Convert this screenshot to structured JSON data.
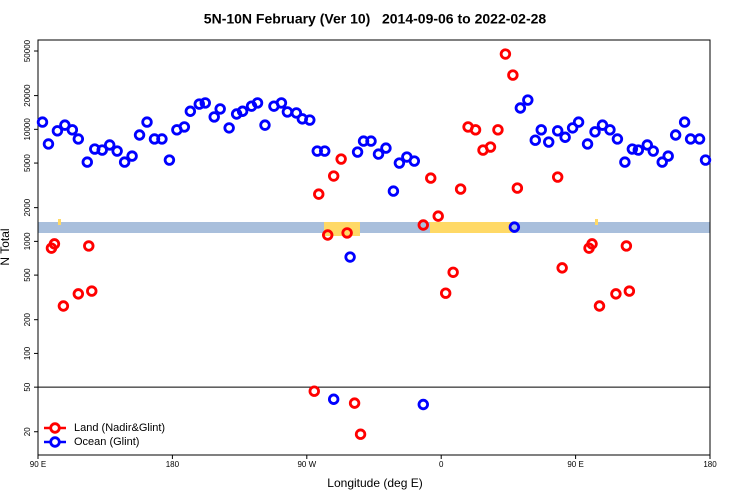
{
  "chart_data": {
    "type": "scatter",
    "title": "5N-10N February (Ver 10)   2014-09-06 to 2022-02-28",
    "x_label": "Longitude (deg E)",
    "y_label": "N Total",
    "xlim": [
      90,
      540
    ],
    "xticks": [
      {
        "value": 90,
        "label": "90 E"
      },
      {
        "value": 180,
        "label": "180"
      },
      {
        "value": 270,
        "label": "90 W"
      },
      {
        "value": 360,
        "label": "0"
      },
      {
        "value": 450,
        "label": "90 E"
      },
      {
        "value": 540,
        "label": "180"
      }
    ],
    "ylim": [
      12.4,
      62700
    ],
    "y_log": true,
    "yticks": [
      20,
      50,
      100,
      200,
      500,
      1000,
      2000,
      5000,
      10000,
      20000,
      50000
    ],
    "hline": 50,
    "legend": "bottom-left",
    "series": [
      {
        "name": "Land (Nadir&Glint)",
        "color": "#ff0000",
        "x": [
          99,
          101,
          107,
          117,
          124,
          126,
          275,
          278,
          284,
          288,
          293,
          297,
          302,
          306,
          348,
          353,
          358,
          363,
          368,
          373,
          378,
          383,
          388,
          393,
          398,
          403,
          408,
          411,
          438,
          441,
          459,
          461,
          466,
          477,
          484,
          486
        ],
        "values": [
          870,
          950,
          265,
          340,
          910,
          360,
          46,
          2640,
          1140,
          3830,
          5430,
          1190,
          36,
          19,
          1400,
          3670,
          1680,
          345,
          530,
          2930,
          10500,
          9900,
          6530,
          6950,
          9900,
          47000,
          30500,
          2990,
          3750,
          580,
          870,
          950,
          265,
          340,
          910,
          360
        ]
      },
      {
        "name": "Ocean (Glint)",
        "color": "#0000ff",
        "x": [
          93,
          97,
          103,
          108,
          113,
          117,
          123,
          128,
          133,
          138,
          143,
          148,
          153,
          158,
          163,
          168,
          173,
          178,
          183,
          188,
          192,
          198,
          202,
          208,
          212,
          218,
          223,
          227,
          233,
          237,
          242,
          248,
          253,
          257,
          263,
          267,
          272,
          277,
          282,
          288,
          299,
          304,
          308,
          313,
          318,
          323,
          328,
          332,
          337,
          342,
          348,
          409,
          413,
          418,
          423,
          427,
          432,
          438,
          443,
          448,
          452,
          458,
          463,
          468,
          473,
          478,
          483,
          488,
          492,
          498,
          502,
          508,
          512,
          517,
          523,
          527,
          533,
          537
        ],
        "values": [
          11600,
          7400,
          9700,
          10900,
          9900,
          8200,
          5100,
          6670,
          6530,
          7250,
          6400,
          5100,
          5770,
          8900,
          11600,
          8200,
          8200,
          5320,
          9900,
          10500,
          14500,
          16800,
          17200,
          12900,
          15200,
          10300,
          13700,
          14500,
          16100,
          17200,
          10900,
          16100,
          17200,
          14300,
          14000,
          12400,
          12100,
          6400,
          6400,
          39,
          725,
          6270,
          7850,
          7850,
          6010,
          6800,
          2810,
          5000,
          5660,
          5210,
          35,
          1340,
          15500,
          18250,
          8000,
          9900,
          7700,
          9700,
          8500,
          10300,
          11600,
          7400,
          9500,
          10900,
          9900,
          8200,
          5100,
          6670,
          6530,
          7250,
          6400,
          5100,
          5770,
          8900,
          11600,
          8200,
          8200,
          5320
        ]
      }
    ]
  }
}
